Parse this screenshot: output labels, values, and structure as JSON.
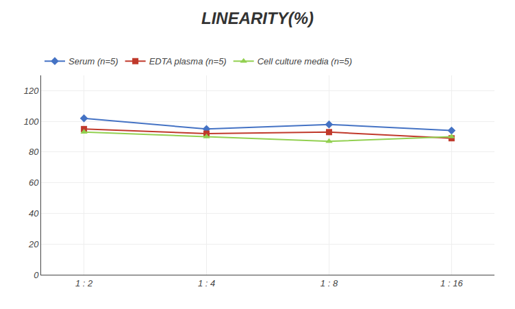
{
  "chart_data": {
    "type": "line",
    "title": "LINEARITY(%)",
    "categories": [
      "1 : 2",
      "1 : 4",
      "1 : 8",
      "1 : 16"
    ],
    "series": [
      {
        "name": "Serum (n=5)",
        "color": "#4472C4",
        "marker": "diamond",
        "values": [
          102,
          95,
          98,
          94
        ]
      },
      {
        "name": "EDTA plasma (n=5)",
        "color": "#C0392B",
        "marker": "square",
        "values": [
          95,
          92,
          93,
          89
        ]
      },
      {
        "name": "Cell culture media (n=5)",
        "color": "#92D050",
        "marker": "triangle-up",
        "values": [
          93,
          90,
          87,
          90
        ]
      }
    ],
    "ylim": [
      0,
      130
    ],
    "yticks": [
      0,
      20,
      40,
      60,
      80,
      100,
      120
    ],
    "grid": true,
    "legend": "top"
  }
}
